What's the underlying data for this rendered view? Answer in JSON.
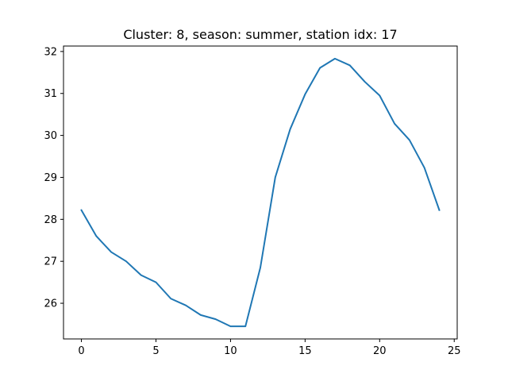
{
  "chart_data": {
    "type": "line",
    "title": "Cluster: 8, season: summer, station idx: 17",
    "xlabel": "",
    "ylabel": "",
    "xlim": [
      -1.2,
      25.2
    ],
    "ylim": [
      25.15,
      32.13
    ],
    "xticks": [
      0,
      5,
      10,
      15,
      20,
      25
    ],
    "yticks": [
      26,
      27,
      28,
      29,
      30,
      31,
      32
    ],
    "grid": false,
    "series": [
      {
        "color": "#1f77b4",
        "x": [
          0,
          1,
          2,
          3,
          4,
          5,
          6,
          7,
          8,
          9,
          10,
          11,
          12,
          13,
          14,
          15,
          16,
          17,
          18,
          19,
          20,
          21,
          22,
          23,
          24
        ],
        "y": [
          28.22,
          27.6,
          27.22,
          27.0,
          26.67,
          26.5,
          26.11,
          25.95,
          25.72,
          25.62,
          25.45,
          25.45,
          26.85,
          29.0,
          30.15,
          30.98,
          31.61,
          31.83,
          31.67,
          31.28,
          30.95,
          30.28,
          29.89,
          29.23,
          28.22
        ]
      }
    ]
  }
}
